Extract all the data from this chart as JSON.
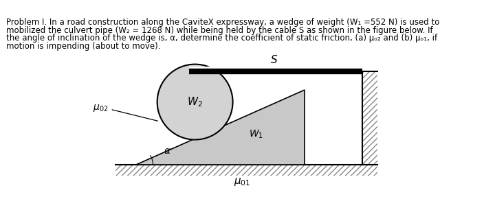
{
  "text_lines": [
    "Problem I. In a road construction along the CaviteX expressway, a wedge of weight (W₁ =552 N) is used to",
    "mobilized the culvert pipe (W₂ = 1268 N) while being held by the cable S as shown in the figure below. If",
    "the angle of inclination of the wedge is, α, determine the coefficient of static friction, (a) μₒ₂ and (b) μₒ₁, if",
    "motion is impending (about to move)."
  ],
  "bg_color": "#ffffff",
  "hatch_color": "#888888",
  "wedge_fill": "#c8c8c8",
  "pipe_fill": "#d3d3d3",
  "text_color": "#000000",
  "label_S": "$S$",
  "label_W2": "$W_2$",
  "label_W1": "$W_1$",
  "label_mu02": "$\\mu_{02}$",
  "label_mu01": "$\\mu_{01}$",
  "label_alpha": "$\\alpha$",
  "fontsize_text": 8.5,
  "fontsize_labels": 10
}
